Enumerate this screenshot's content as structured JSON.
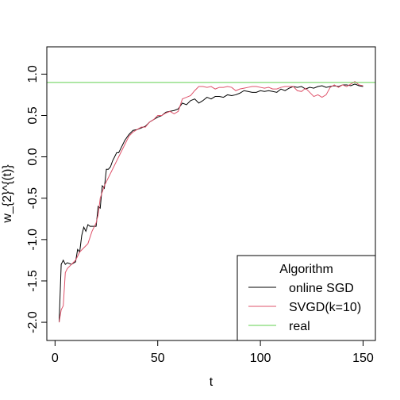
{
  "chart_data": {
    "type": "line",
    "title": "",
    "xlabel": "t",
    "ylabel": "w_{2}^{(t)}",
    "xlim": [
      -4,
      156
    ],
    "ylim": [
      -2.22,
      1.33
    ],
    "x_ticks": [
      0,
      50,
      100,
      150
    ],
    "y_ticks": [
      -2.0,
      -1.5,
      -1.0,
      -0.5,
      0.0,
      0.5,
      1.0
    ],
    "x_tick_labels": [
      "0",
      "50",
      "100",
      "150"
    ],
    "y_tick_labels": [
      "-2.0",
      "-1.5",
      "-1.0",
      "-0.5",
      "0.0",
      "0.5",
      "1.0"
    ],
    "grid": false,
    "legend": {
      "title": "Algorithm",
      "placement": "bottom-right"
    },
    "series": [
      {
        "name": "online SGD",
        "color": "#000000",
        "x": [
          2,
          3,
          4,
          5,
          6,
          8,
          10,
          11,
          12,
          13,
          14,
          15,
          16,
          17,
          18,
          20,
          21,
          22,
          23,
          24,
          25,
          26,
          27,
          28,
          29,
          30,
          31,
          32,
          33,
          34,
          36,
          38,
          40,
          42,
          44,
          46,
          48,
          50,
          52,
          54,
          56,
          58,
          60,
          62,
          64,
          66,
          68,
          70,
          72,
          74,
          76,
          78,
          80,
          82,
          84,
          86,
          88,
          90,
          92,
          94,
          96,
          98,
          100,
          102,
          104,
          106,
          108,
          110,
          112,
          114,
          116,
          118,
          120,
          122,
          124,
          126,
          128,
          130,
          132,
          134,
          136,
          138,
          140,
          142,
          144,
          146,
          148,
          150
        ],
        "y": [
          -2.0,
          -1.3,
          -1.25,
          -1.3,
          -1.28,
          -1.3,
          -1.27,
          -1.12,
          -1.15,
          -0.95,
          -0.85,
          -0.9,
          -0.82,
          -0.84,
          -0.84,
          -0.84,
          -0.6,
          -0.62,
          -0.35,
          -0.38,
          -0.15,
          -0.15,
          -0.12,
          -0.05,
          0.0,
          0.05,
          0.05,
          0.1,
          0.15,
          0.2,
          0.27,
          0.32,
          0.33,
          0.35,
          0.37,
          0.42,
          0.45,
          0.48,
          0.5,
          0.54,
          0.55,
          0.56,
          0.58,
          0.65,
          0.63,
          0.68,
          0.7,
          0.65,
          0.68,
          0.72,
          0.7,
          0.73,
          0.73,
          0.72,
          0.75,
          0.74,
          0.75,
          0.77,
          0.8,
          0.79,
          0.78,
          0.78,
          0.8,
          0.79,
          0.8,
          0.79,
          0.78,
          0.82,
          0.8,
          0.83,
          0.85,
          0.84,
          0.85,
          0.82,
          0.84,
          0.83,
          0.85,
          0.86,
          0.84,
          0.85,
          0.86,
          0.85,
          0.87,
          0.87,
          0.86,
          0.88,
          0.86,
          0.85
        ]
      },
      {
        "name": "SVGD(k=10)",
        "color": "#DF536B",
        "x": [
          2,
          3,
          4,
          5,
          6,
          8,
          10,
          12,
          14,
          16,
          18,
          20,
          21,
          22,
          24,
          26,
          28,
          30,
          32,
          34,
          36,
          38,
          40,
          42,
          44,
          46,
          48,
          50,
          52,
          54,
          56,
          58,
          60,
          62,
          64,
          66,
          68,
          70,
          72,
          74,
          76,
          78,
          80,
          82,
          84,
          86,
          88,
          90,
          92,
          94,
          96,
          98,
          100,
          102,
          104,
          106,
          108,
          110,
          112,
          114,
          116,
          118,
          120,
          122,
          124,
          126,
          128,
          130,
          132,
          134,
          136,
          138,
          140,
          142,
          144,
          146,
          148,
          150
        ],
        "y": [
          -2.0,
          -1.85,
          -1.8,
          -1.4,
          -1.35,
          -1.3,
          -1.25,
          -1.15,
          -1.1,
          -1.05,
          -0.9,
          -0.8,
          -0.7,
          -0.5,
          -0.35,
          -0.25,
          -0.15,
          -0.05,
          0.05,
          0.15,
          0.25,
          0.3,
          0.33,
          0.36,
          0.36,
          0.42,
          0.45,
          0.5,
          0.5,
          0.53,
          0.55,
          0.52,
          0.55,
          0.7,
          0.72,
          0.74,
          0.8,
          0.85,
          0.85,
          0.84,
          0.85,
          0.82,
          0.84,
          0.84,
          0.85,
          0.84,
          0.8,
          0.82,
          0.83,
          0.84,
          0.85,
          0.85,
          0.84,
          0.83,
          0.84,
          0.82,
          0.82,
          0.84,
          0.85,
          0.85,
          0.85,
          0.8,
          0.79,
          0.83,
          0.78,
          0.73,
          0.75,
          0.72,
          0.75,
          0.84,
          0.87,
          0.84,
          0.87,
          0.85,
          0.88,
          0.91,
          0.87,
          0.86
        ]
      },
      {
        "name": "real",
        "color": "#61D04F",
        "x": [
          -4,
          156
        ],
        "y": [
          0.9,
          0.9
        ]
      }
    ]
  }
}
